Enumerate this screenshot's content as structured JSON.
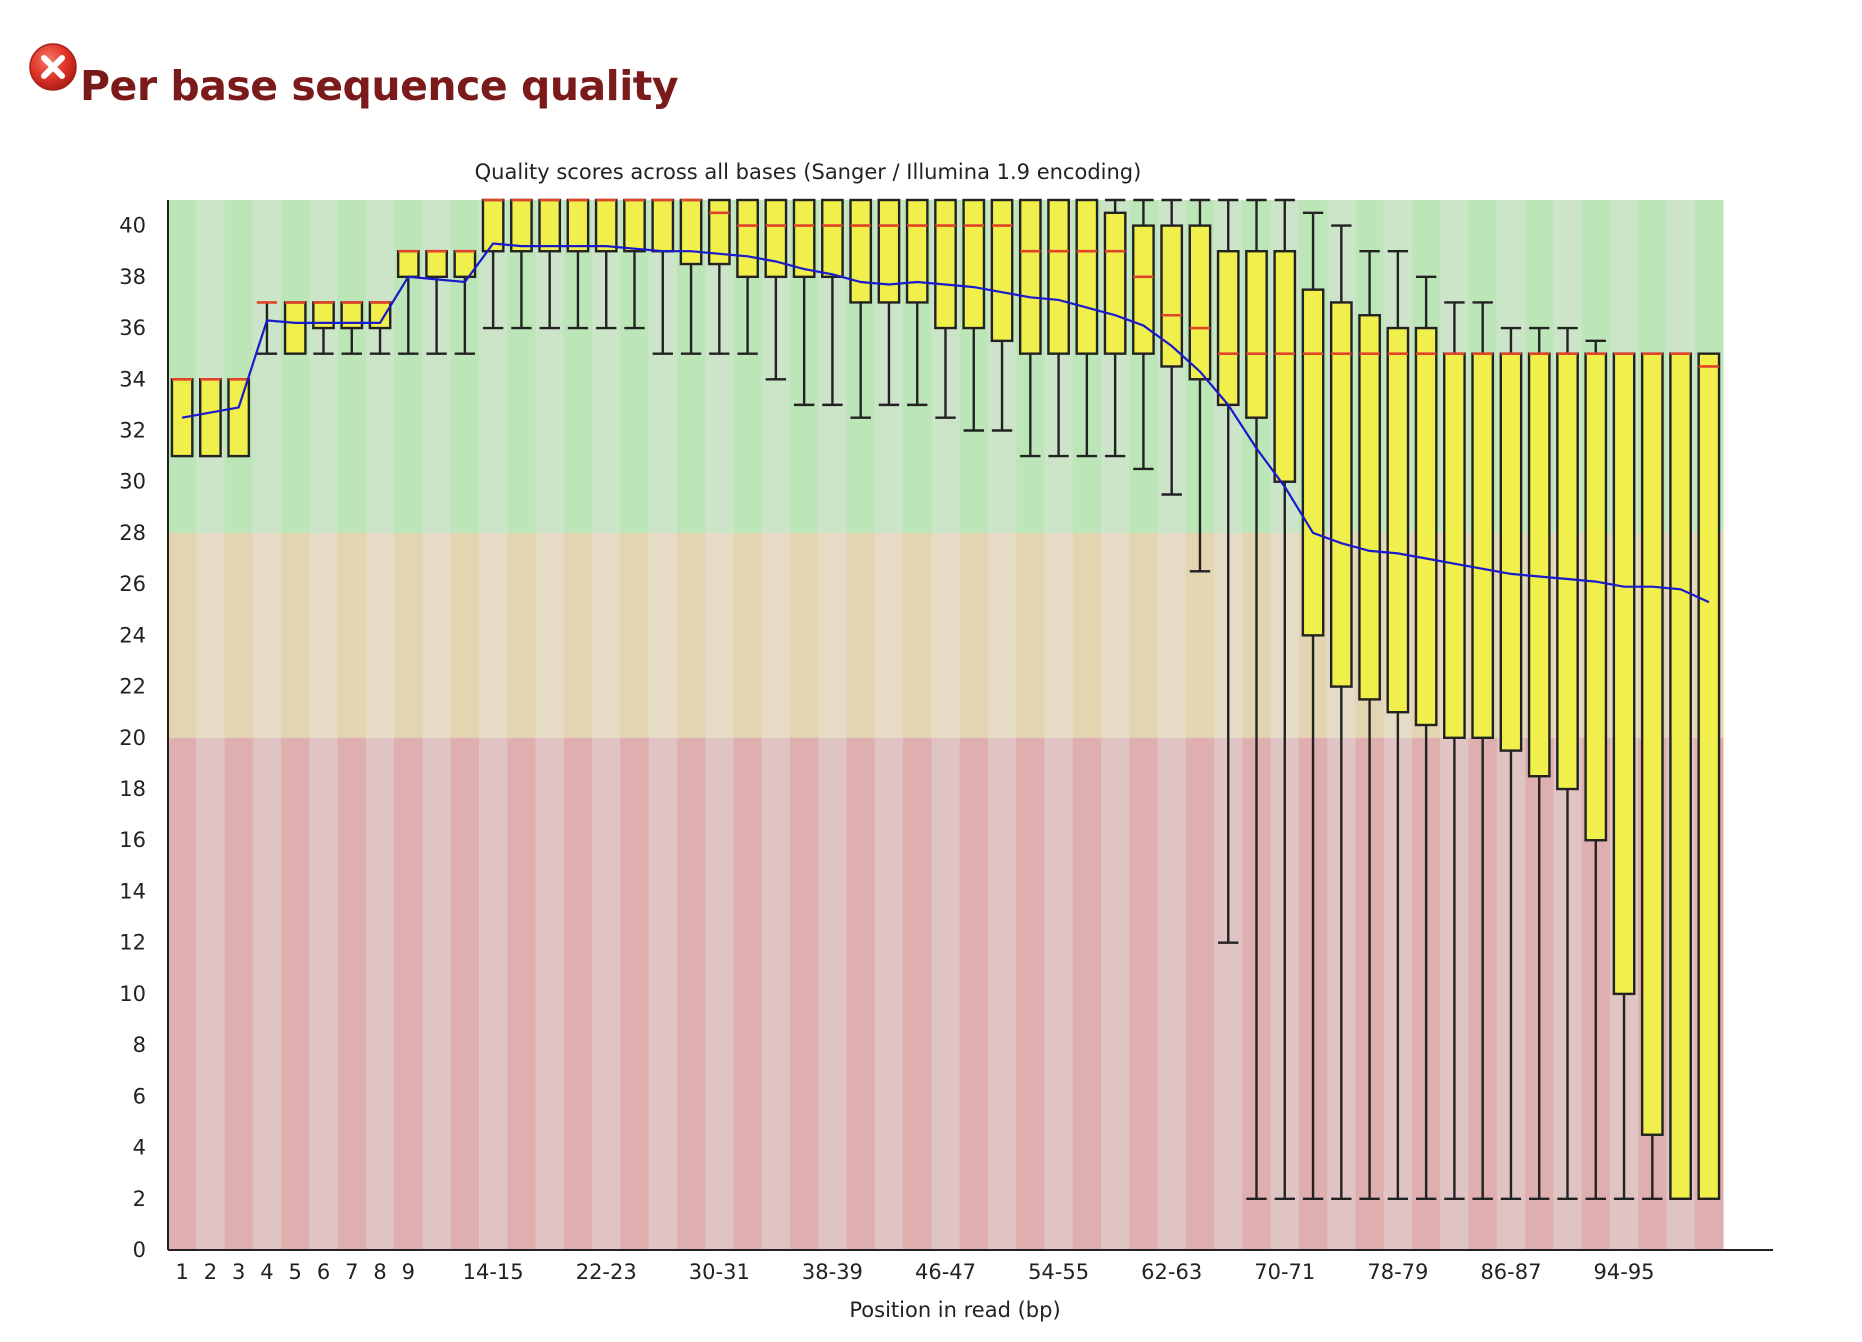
{
  "section": {
    "status_icon": "error-x-circle-icon",
    "title": "Per base sequence quality"
  },
  "colors": {
    "title": "#7a1a1a",
    "good_band": [
      "#bde6b8",
      "#cce4c8"
    ],
    "warn_band": [
      "#e3d5b2",
      "#e6dcc6"
    ],
    "fail_band": [
      "#dfaeae",
      "#e0c4c4"
    ],
    "box_fill": "#f0ef4c",
    "median": "#e0442a",
    "mean_line": "#1a1acc",
    "whisker": "#222222"
  },
  "chart_data": {
    "type": "boxplot",
    "title": "Quality scores across all bases (Sanger / Illumina 1.9 encoding)",
    "xlabel": "Position in read (bp)",
    "ylabel": "",
    "ylim": [
      0,
      41
    ],
    "yticks": [
      0,
      2,
      4,
      6,
      8,
      10,
      12,
      14,
      16,
      18,
      20,
      22,
      24,
      26,
      28,
      30,
      32,
      34,
      36,
      38,
      40
    ],
    "bands": [
      {
        "name": "good",
        "from": 28,
        "to": 41
      },
      {
        "name": "warning",
        "from": 20,
        "to": 28
      },
      {
        "name": "fail",
        "from": 0,
        "to": 20
      }
    ],
    "xtick_labels": [
      "1",
      "2",
      "3",
      "4",
      "5",
      "6",
      "7",
      "8",
      "9",
      "14-15",
      "22-23",
      "30-31",
      "38-39",
      "46-47",
      "54-55",
      "62-63",
      "70-71",
      "78-79",
      "86-87",
      "94-95"
    ],
    "legend": "none",
    "positions": [
      {
        "label": "1",
        "lw": 31,
        "q1": 31,
        "median": 34,
        "q3": 34,
        "uw": 34,
        "mean": 32.5
      },
      {
        "label": "2",
        "lw": 31,
        "q1": 31,
        "median": 34,
        "q3": 34,
        "uw": 34,
        "mean": 32.7
      },
      {
        "label": "3",
        "lw": 31,
        "q1": 31,
        "median": 34,
        "q3": 34,
        "uw": 34,
        "mean": 32.9
      },
      {
        "label": "4",
        "lw": 35,
        "q1": 37,
        "median": 37,
        "q3": 37,
        "uw": 37,
        "mean": 36.3
      },
      {
        "label": "5",
        "lw": 35,
        "q1": 35,
        "median": 37,
        "q3": 37,
        "uw": 37,
        "mean": 36.2
      },
      {
        "label": "6",
        "lw": 35,
        "q1": 36,
        "median": 37,
        "q3": 37,
        "uw": 37,
        "mean": 36.2
      },
      {
        "label": "7",
        "lw": 35,
        "q1": 36,
        "median": 37,
        "q3": 37,
        "uw": 37,
        "mean": 36.2
      },
      {
        "label": "8",
        "lw": 35,
        "q1": 36,
        "median": 37,
        "q3": 37,
        "uw": 37,
        "mean": 36.2
      },
      {
        "label": "9",
        "lw": 35,
        "q1": 38,
        "median": 39,
        "q3": 39,
        "uw": 39,
        "mean": 38.0
      },
      {
        "label": "10-11",
        "lw": 35,
        "q1": 38,
        "median": 39,
        "q3": 39,
        "uw": 39,
        "mean": 37.9
      },
      {
        "label": "12-13",
        "lw": 35,
        "q1": 38,
        "median": 39,
        "q3": 39,
        "uw": 39,
        "mean": 37.8
      },
      {
        "label": "14-15",
        "lw": 36,
        "q1": 39,
        "median": 41,
        "q3": 41,
        "uw": 41,
        "mean": 39.3
      },
      {
        "label": "16-17",
        "lw": 36,
        "q1": 39,
        "median": 41,
        "q3": 41,
        "uw": 41,
        "mean": 39.2
      },
      {
        "label": "18-19",
        "lw": 36,
        "q1": 39,
        "median": 41,
        "q3": 41,
        "uw": 41,
        "mean": 39.2
      },
      {
        "label": "20-21",
        "lw": 36,
        "q1": 39,
        "median": 41,
        "q3": 41,
        "uw": 41,
        "mean": 39.2
      },
      {
        "label": "22-23",
        "lw": 36,
        "q1": 39,
        "median": 41,
        "q3": 41,
        "uw": 41,
        "mean": 39.2
      },
      {
        "label": "24-25",
        "lw": 36,
        "q1": 39,
        "median": 41,
        "q3": 41,
        "uw": 41,
        "mean": 39.1
      },
      {
        "label": "26-27",
        "lw": 35,
        "q1": 39,
        "median": 41,
        "q3": 41,
        "uw": 41,
        "mean": 39.0
      },
      {
        "label": "28-29",
        "lw": 35,
        "q1": 38.5,
        "median": 41,
        "q3": 41,
        "uw": 41,
        "mean": 39.0
      },
      {
        "label": "30-31",
        "lw": 35,
        "q1": 38.5,
        "median": 40.5,
        "q3": 41,
        "uw": 41,
        "mean": 38.9
      },
      {
        "label": "32-33",
        "lw": 35,
        "q1": 38,
        "median": 40,
        "q3": 41,
        "uw": 41,
        "mean": 38.8
      },
      {
        "label": "34-35",
        "lw": 34,
        "q1": 38,
        "median": 40,
        "q3": 41,
        "uw": 41,
        "mean": 38.6
      },
      {
        "label": "36-37",
        "lw": 33,
        "q1": 38,
        "median": 40,
        "q3": 41,
        "uw": 41,
        "mean": 38.3
      },
      {
        "label": "38-39",
        "lw": 33,
        "q1": 38,
        "median": 40,
        "q3": 41,
        "uw": 41,
        "mean": 38.1
      },
      {
        "label": "40-41",
        "lw": 32.5,
        "q1": 37,
        "median": 40,
        "q3": 41,
        "uw": 41,
        "mean": 37.8
      },
      {
        "label": "42-43",
        "lw": 33,
        "q1": 37,
        "median": 40,
        "q3": 41,
        "uw": 41,
        "mean": 37.7
      },
      {
        "label": "44-45",
        "lw": 33,
        "q1": 37,
        "median": 40,
        "q3": 41,
        "uw": 41,
        "mean": 37.8
      },
      {
        "label": "46-47",
        "lw": 32.5,
        "q1": 36,
        "median": 40,
        "q3": 41,
        "uw": 41,
        "mean": 37.7
      },
      {
        "label": "48-49",
        "lw": 32,
        "q1": 36,
        "median": 40,
        "q3": 41,
        "uw": 41,
        "mean": 37.6
      },
      {
        "label": "50-51",
        "lw": 32,
        "q1": 35.5,
        "median": 40,
        "q3": 41,
        "uw": 41,
        "mean": 37.4
      },
      {
        "label": "52-53",
        "lw": 31,
        "q1": 35,
        "median": 39,
        "q3": 41,
        "uw": 41,
        "mean": 37.2
      },
      {
        "label": "54-55",
        "lw": 31,
        "q1": 35,
        "median": 39,
        "q3": 41,
        "uw": 41,
        "mean": 37.1
      },
      {
        "label": "56-57",
        "lw": 31,
        "q1": 35,
        "median": 39,
        "q3": 41,
        "uw": 41,
        "mean": 36.8
      },
      {
        "label": "58-59",
        "lw": 31,
        "q1": 35,
        "median": 39,
        "q3": 40.5,
        "uw": 41,
        "mean": 36.5
      },
      {
        "label": "60-61",
        "lw": 30.5,
        "q1": 35,
        "median": 38,
        "q3": 40,
        "uw": 41,
        "mean": 36.1
      },
      {
        "label": "62-63",
        "lw": 29.5,
        "q1": 34.5,
        "median": 36.5,
        "q3": 40,
        "uw": 41,
        "mean": 35.3
      },
      {
        "label": "64-65",
        "lw": 26.5,
        "q1": 34,
        "median": 36,
        "q3": 40,
        "uw": 41,
        "mean": 34.3
      },
      {
        "label": "66-67",
        "lw": 12,
        "q1": 33,
        "median": 35,
        "q3": 39,
        "uw": 41,
        "mean": 33.0
      },
      {
        "label": "68-69",
        "lw": 2,
        "q1": 32.5,
        "median": 35,
        "q3": 39,
        "uw": 41,
        "mean": 31.3
      },
      {
        "label": "70-71",
        "lw": 2,
        "q1": 30,
        "median": 35,
        "q3": 39,
        "uw": 41,
        "mean": 29.8
      },
      {
        "label": "72-73",
        "lw": 2,
        "q1": 24,
        "median": 35,
        "q3": 37.5,
        "uw": 40.5,
        "mean": 28.0
      },
      {
        "label": "74-75",
        "lw": 2,
        "q1": 22,
        "median": 35,
        "q3": 37,
        "uw": 40,
        "mean": 27.6
      },
      {
        "label": "76-77",
        "lw": 2,
        "q1": 21.5,
        "median": 35,
        "q3": 36.5,
        "uw": 39,
        "mean": 27.3
      },
      {
        "label": "78-79",
        "lw": 2,
        "q1": 21,
        "median": 35,
        "q3": 36,
        "uw": 39,
        "mean": 27.2
      },
      {
        "label": "80-81",
        "lw": 2,
        "q1": 20.5,
        "median": 35,
        "q3": 36,
        "uw": 38,
        "mean": 27.0
      },
      {
        "label": "82-83",
        "lw": 2,
        "q1": 20,
        "median": 35,
        "q3": 35,
        "uw": 37,
        "mean": 26.8
      },
      {
        "label": "84-85",
        "lw": 2,
        "q1": 20,
        "median": 35,
        "q3": 35,
        "uw": 37,
        "mean": 26.6
      },
      {
        "label": "86-87",
        "lw": 2,
        "q1": 19.5,
        "median": 35,
        "q3": 35,
        "uw": 36,
        "mean": 26.4
      },
      {
        "label": "88-89",
        "lw": 2,
        "q1": 18.5,
        "median": 35,
        "q3": 35,
        "uw": 36,
        "mean": 26.3
      },
      {
        "label": "90-91",
        "lw": 2,
        "q1": 18,
        "median": 35,
        "q3": 35,
        "uw": 36,
        "mean": 26.2
      },
      {
        "label": "92-93",
        "lw": 2,
        "q1": 16,
        "median": 35,
        "q3": 35,
        "uw": 35.5,
        "mean": 26.1
      },
      {
        "label": "94-95",
        "lw": 2,
        "q1": 10,
        "median": 35,
        "q3": 35,
        "uw": 35,
        "mean": 25.9
      },
      {
        "label": "96-97",
        "lw": 2,
        "q1": 4.5,
        "median": 35,
        "q3": 35,
        "uw": 35,
        "mean": 25.9
      },
      {
        "label": "98-99",
        "lw": 2,
        "q1": 2,
        "median": 35,
        "q3": 35,
        "uw": 35,
        "mean": 25.8
      },
      {
        "label": "100-101",
        "lw": 2,
        "q1": 2,
        "median": 34.5,
        "q3": 35,
        "uw": 35,
        "mean": 25.3
      }
    ]
  }
}
